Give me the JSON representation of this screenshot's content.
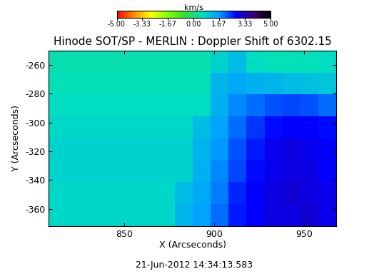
{
  "chart_data": {
    "type": "heatmap",
    "title": "Hinode SOT/SP - MERLIN : Doppler Shift of 6302.15",
    "xlabel": "X (Arcseconds)",
    "ylabel": "Y (Arcseconds)",
    "annotation": "21-Jun-2012 14:34:13.583",
    "colorbar_label": "km/s",
    "x_edges": [
      808,
      818,
      828,
      838,
      848,
      858,
      868,
      878,
      888,
      898,
      908,
      918,
      928,
      938,
      948,
      958,
      968
    ],
    "y_edges": [
      -372,
      -356.75,
      -341.5,
      -326.25,
      -311,
      -295.75,
      -280.5,
      -265.25,
      -250
    ],
    "cells": [
      [
        0.7,
        0.7,
        0.7,
        0.7,
        0.7,
        0.7,
        0.7,
        1.3,
        1.6,
        2.0,
        2.6,
        2.8,
        3.0,
        3.0,
        3.1,
        2.9
      ],
      [
        0.7,
        0.7,
        0.7,
        0.7,
        0.7,
        0.7,
        0.7,
        1.2,
        1.5,
        1.9,
        2.5,
        2.8,
        3.0,
        3.1,
        3.0,
        2.9
      ],
      [
        0.8,
        0.8,
        0.8,
        0.8,
        0.8,
        0.8,
        0.8,
        0.8,
        1.4,
        1.8,
        2.3,
        2.7,
        2.9,
        3.0,
        3.0,
        2.8
      ],
      [
        0.8,
        0.8,
        0.8,
        0.8,
        0.8,
        0.8,
        0.8,
        0.8,
        1.3,
        1.7,
        2.2,
        2.6,
        2.9,
        3.0,
        2.9,
        2.8
      ],
      [
        0.7,
        0.7,
        0.7,
        0.7,
        0.7,
        0.7,
        0.7,
        0.7,
        1.2,
        1.6,
        2.0,
        2.4,
        2.7,
        2.8,
        2.8,
        2.7
      ],
      [
        0.6,
        0.6,
        0.6,
        0.6,
        0.6,
        0.6,
        0.6,
        0.6,
        0.6,
        1.4,
        1.8,
        2.0,
        2.2,
        2.3,
        2.2,
        2.0
      ],
      [
        0.5,
        0.5,
        0.5,
        0.5,
        0.5,
        0.5,
        0.5,
        0.5,
        0.5,
        1.3,
        1.5,
        1.4,
        1.3,
        1.2,
        1.1,
        1.0
      ],
      [
        0.4,
        0.4,
        0.4,
        0.4,
        0.4,
        0.4,
        0.4,
        0.4,
        0.4,
        0.8,
        1.2,
        0.6,
        0.5,
        0.5,
        0.5,
        0.6
      ]
    ],
    "zlim": [
      -5,
      5
    ],
    "zticks": [
      {
        "value": -5,
        "label": "-5.00"
      },
      {
        "value": -3.33,
        "label": "-3.33"
      },
      {
        "value": -1.67,
        "label": "-1.67"
      },
      {
        "value": 0,
        "label": "0.00"
      },
      {
        "value": 1.67,
        "label": "1.67"
      },
      {
        "value": 3.33,
        "label": "3.33"
      },
      {
        "value": 5,
        "label": "5.00"
      }
    ],
    "xlim": [
      808,
      968
    ],
    "ylim": [
      -372,
      -250
    ],
    "xticks": [
      850,
      900,
      950
    ],
    "yticks": [
      -360,
      -340,
      -320,
      -300,
      -280,
      -260
    ]
  }
}
